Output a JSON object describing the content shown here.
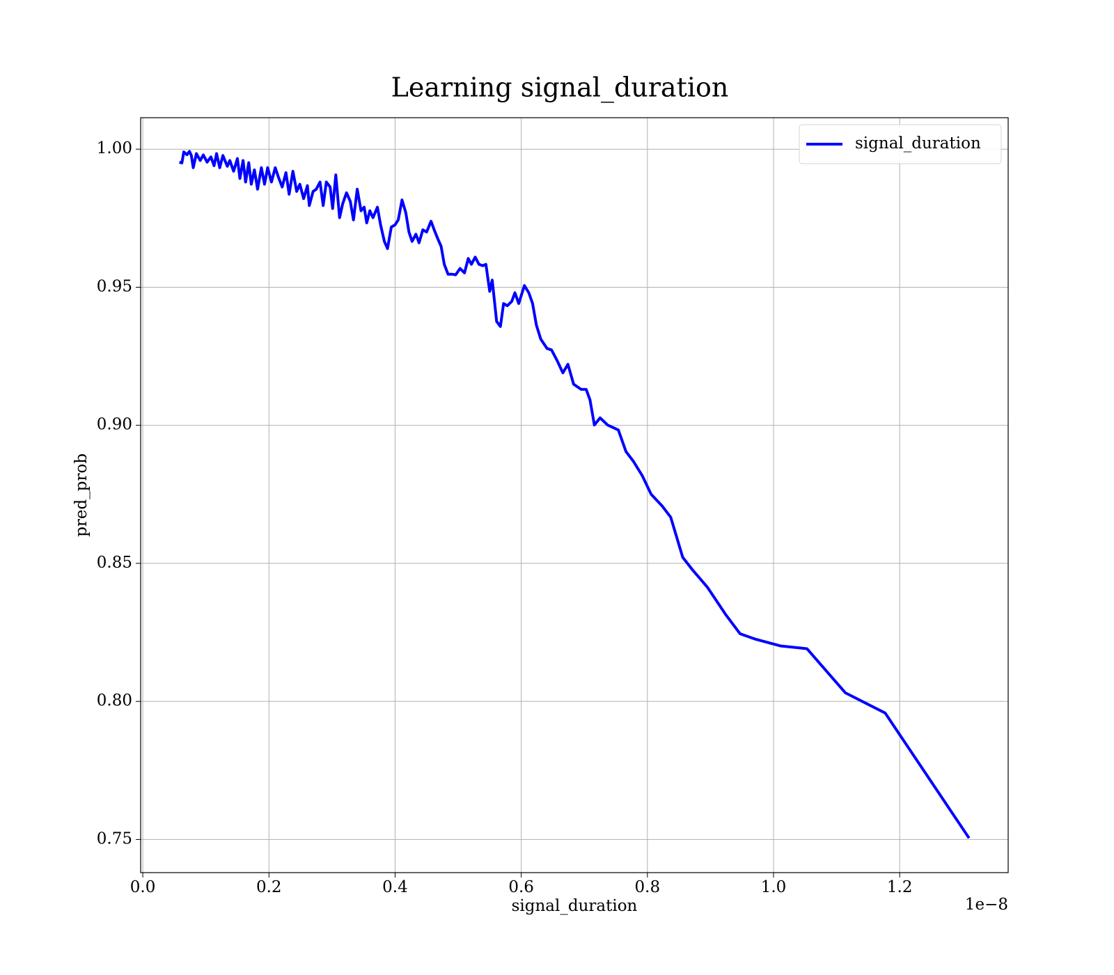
{
  "chart_data": {
    "type": "line",
    "title": "Learning signal_duration",
    "x_label": "signal_duration",
    "y_label": "pred_prob",
    "x_offset_label": "1e−8",
    "x": [
      0.058,
      0.062,
      0.065,
      0.07,
      0.074,
      0.077,
      0.08,
      0.085,
      0.091,
      0.096,
      0.102,
      0.108,
      0.113,
      0.117,
      0.122,
      0.127,
      0.134,
      0.138,
      0.144,
      0.15,
      0.154,
      0.159,
      0.163,
      0.168,
      0.172,
      0.177,
      0.182,
      0.188,
      0.193,
      0.198,
      0.204,
      0.21,
      0.215,
      0.221,
      0.227,
      0.232,
      0.238,
      0.244,
      0.249,
      0.255,
      0.261,
      0.264,
      0.27,
      0.275,
      0.281,
      0.286,
      0.291,
      0.297,
      0.301,
      0.306,
      0.312,
      0.317,
      0.323,
      0.329,
      0.334,
      0.34,
      0.346,
      0.351,
      0.355,
      0.36,
      0.365,
      0.372,
      0.377,
      0.383,
      0.388,
      0.394,
      0.4,
      0.405,
      0.411,
      0.417,
      0.422,
      0.427,
      0.433,
      0.438,
      0.444,
      0.45,
      0.457,
      0.462,
      0.468,
      0.473,
      0.478,
      0.484,
      0.491,
      0.496,
      0.503,
      0.51,
      0.516,
      0.521,
      0.527,
      0.533,
      0.539,
      0.544,
      0.55,
      0.554,
      0.561,
      0.567,
      0.572,
      0.578,
      0.585,
      0.59,
      0.596,
      0.605,
      0.612,
      0.618,
      0.624,
      0.631,
      0.641,
      0.648,
      0.657,
      0.666,
      0.674,
      0.683,
      0.695,
      0.703,
      0.709,
      0.716,
      0.725,
      0.737,
      0.754,
      0.766,
      0.778,
      0.792,
      0.806,
      0.823,
      0.837,
      0.856,
      0.871,
      0.895,
      0.924,
      0.947,
      0.972,
      1.011,
      1.053,
      1.114,
      1.177,
      1.31
    ],
    "series": [
      {
        "name": "signal_duration",
        "color": "#0000ff",
        "values": [
          0.9953,
          0.995,
          0.999,
          0.998,
          0.9992,
          0.9977,
          0.9933,
          0.9984,
          0.9959,
          0.9979,
          0.9953,
          0.9972,
          0.994,
          0.9984,
          0.9933,
          0.9977,
          0.9938,
          0.9959,
          0.992,
          0.9966,
          0.9894,
          0.9959,
          0.9881,
          0.9951,
          0.9873,
          0.9925,
          0.9855,
          0.9933,
          0.9873,
          0.9933,
          0.9881,
          0.9933,
          0.9899,
          0.9863,
          0.9915,
          0.9837,
          0.992,
          0.9847,
          0.9873,
          0.9821,
          0.9868,
          0.9796,
          0.9847,
          0.9855,
          0.9881,
          0.9796,
          0.9881,
          0.9863,
          0.9785,
          0.9907,
          0.9752,
          0.9803,
          0.9842,
          0.9811,
          0.9744,
          0.9855,
          0.9777,
          0.979,
          0.9733,
          0.9777,
          0.9752,
          0.979,
          0.9726,
          0.9666,
          0.964,
          0.9718,
          0.9726,
          0.9744,
          0.9816,
          0.977,
          0.97,
          0.9666,
          0.9692,
          0.9661,
          0.9708,
          0.97,
          0.9739,
          0.9708,
          0.9674,
          0.9648,
          0.9583,
          0.9547,
          0.9547,
          0.9545,
          0.9568,
          0.9552,
          0.9604,
          0.9583,
          0.9609,
          0.9583,
          0.9578,
          0.9583,
          0.9485,
          0.9526,
          0.9376,
          0.9358,
          0.9441,
          0.9433,
          0.9449,
          0.948,
          0.9441,
          0.9506,
          0.948,
          0.9441,
          0.9363,
          0.9312,
          0.9278,
          0.9273,
          0.9234,
          0.919,
          0.9221,
          0.9149,
          0.913,
          0.913,
          0.9092,
          0.9001,
          0.9027,
          0.9001,
          0.8983,
          0.8905,
          0.8869,
          0.8817,
          0.875,
          0.8709,
          0.8667,
          0.8522,
          0.8478,
          0.8414,
          0.8315,
          0.8245,
          0.8225,
          0.8201,
          0.8191,
          0.8031,
          0.7958,
          0.7505
        ]
      }
    ],
    "xlim": [
      -0.0034,
      1.372
    ],
    "ylim": [
      0.738,
      1.0114
    ],
    "xticks": [
      {
        "value": 0,
        "label": "0.0"
      },
      0.2,
      0.4,
      0.6,
      0.8,
      {
        "value": 1,
        "label": "1.0"
      },
      1.2
    ],
    "yticks": [
      0.75,
      {
        "value": 0.8,
        "label": "0.80"
      },
      0.85,
      {
        "value": 0.9,
        "label": "0.90"
      },
      0.95,
      {
        "value": 1,
        "label": "1.00"
      }
    ],
    "grid": true,
    "legend": "upper right"
  }
}
